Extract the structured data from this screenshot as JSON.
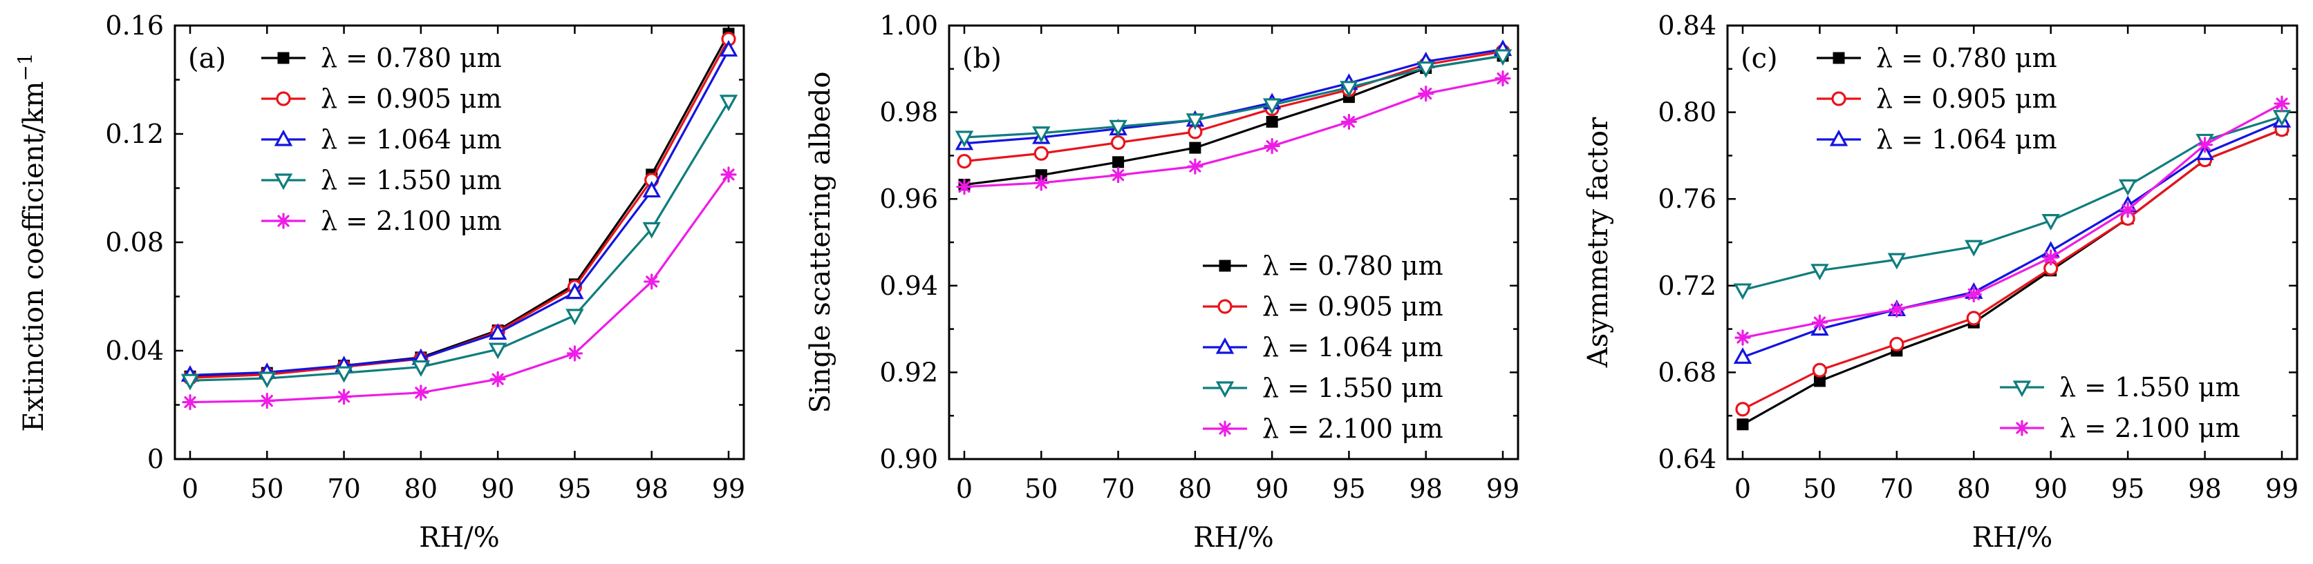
{
  "chart_data": [
    {
      "type": "line",
      "panel_label": "(a)",
      "categories": [
        "0",
        "50",
        "70",
        "80",
        "90",
        "95",
        "98",
        "99"
      ],
      "xlabel": "RH/%",
      "ylabel": "Extinction coefficient/km",
      "ylabel_sup": "−1",
      "ylim": [
        0,
        0.16
      ],
      "yticks": [
        "0",
        "0.04",
        "0.08",
        "0.12",
        "0.16"
      ],
      "ytick_values": [
        0,
        0.04,
        0.08,
        0.12,
        0.16
      ],
      "legend_position": "top-left",
      "legend_split": "none",
      "series": [
        {
          "name": "λ = 0.780 μm",
          "color": "#000000",
          "marker": "square-filled",
          "values": [
            0.0305,
            0.0318,
            0.0345,
            0.0375,
            0.0475,
            0.0645,
            0.105,
            0.157
          ]
        },
        {
          "name": "λ = 0.905 μm",
          "color": "#e8141b",
          "marker": "circle-open",
          "values": [
            0.03,
            0.0312,
            0.034,
            0.037,
            0.047,
            0.0635,
            0.103,
            0.155
          ]
        },
        {
          "name": "λ = 1.064 μm",
          "color": "#1414e0",
          "marker": "triangle-up-open",
          "values": [
            0.031,
            0.032,
            0.0345,
            0.0372,
            0.0465,
            0.0615,
            0.099,
            0.151
          ]
        },
        {
          "name": "λ = 1.550 μm",
          "color": "#0f7d7d",
          "marker": "triangle-down-open",
          "values": [
            0.029,
            0.0298,
            0.0318,
            0.034,
            0.0405,
            0.053,
            0.085,
            0.132
          ]
        },
        {
          "name": "λ = 2.100 μm",
          "color": "#ee1ce6",
          "marker": "star",
          "values": [
            0.021,
            0.0215,
            0.023,
            0.0245,
            0.0295,
            0.039,
            0.0655,
            0.105
          ]
        }
      ]
    },
    {
      "type": "line",
      "panel_label": "(b)",
      "categories": [
        "0",
        "50",
        "70",
        "80",
        "90",
        "95",
        "98",
        "99"
      ],
      "xlabel": "RH/%",
      "ylabel": "Single scattering albedo",
      "ylabel_sup": "",
      "ylim": [
        0.9,
        1.0
      ],
      "yticks": [
        "0.90",
        "0.92",
        "0.94",
        "0.96",
        "0.98",
        "1.00"
      ],
      "ytick_values": [
        0.9,
        0.92,
        0.94,
        0.96,
        0.98,
        1.0
      ],
      "legend_position": "bottom-right",
      "legend_split": "none",
      "series": [
        {
          "name": "λ = 0.780 μm",
          "color": "#000000",
          "marker": "square-filled",
          "values": [
            0.9633,
            0.9655,
            0.9685,
            0.9718,
            0.9778,
            0.9835,
            0.9902,
            0.993
          ]
        },
        {
          "name": "λ = 0.905 μm",
          "color": "#e8141b",
          "marker": "circle-open",
          "values": [
            0.9687,
            0.9705,
            0.973,
            0.9755,
            0.9808,
            0.9852,
            0.991,
            0.994
          ]
        },
        {
          "name": "λ = 1.064 μm",
          "color": "#1414e0",
          "marker": "triangle-up-open",
          "values": [
            0.9728,
            0.9742,
            0.9762,
            0.9782,
            0.9822,
            0.9867,
            0.9917,
            0.9945
          ]
        },
        {
          "name": "λ = 1.550 μm",
          "color": "#0f7d7d",
          "marker": "triangle-down-open",
          "values": [
            0.9742,
            0.9752,
            0.9767,
            0.9782,
            0.9817,
            0.9857,
            0.9902,
            0.993
          ]
        },
        {
          "name": "λ = 2.100 μm",
          "color": "#ee1ce6",
          "marker": "star",
          "values": [
            0.9628,
            0.9637,
            0.9655,
            0.9675,
            0.9722,
            0.9778,
            0.9843,
            0.9878
          ]
        }
      ]
    },
    {
      "type": "line",
      "panel_label": "(c)",
      "categories": [
        "0",
        "50",
        "70",
        "80",
        "90",
        "95",
        "98",
        "99"
      ],
      "xlabel": "RH/%",
      "ylabel": "Asymmetry factor",
      "ylabel_sup": "",
      "ylim": [
        0.64,
        0.84
      ],
      "yticks": [
        "0.64",
        "0.68",
        "0.72",
        "0.76",
        "0.80",
        "0.84"
      ],
      "ytick_values": [
        0.64,
        0.68,
        0.72,
        0.76,
        0.8,
        0.84
      ],
      "legend_position": "top-left and bottom-right",
      "legend_split": "3+2",
      "series": [
        {
          "name": "λ = 0.780 μm",
          "color": "#000000",
          "marker": "square-filled",
          "values": [
            0.656,
            0.676,
            0.69,
            0.703,
            0.727,
            0.751,
            0.778,
            0.792
          ]
        },
        {
          "name": "λ = 0.905 μm",
          "color": "#e8141b",
          "marker": "circle-open",
          "values": [
            0.663,
            0.681,
            0.693,
            0.705,
            0.728,
            0.751,
            0.778,
            0.792
          ]
        },
        {
          "name": "λ = 1.064 μm",
          "color": "#1414e0",
          "marker": "triangle-up-open",
          "values": [
            0.687,
            0.7,
            0.709,
            0.717,
            0.736,
            0.757,
            0.781,
            0.796
          ]
        },
        {
          "name": "λ = 1.550 μm",
          "color": "#0f7d7d",
          "marker": "triangle-down-open",
          "values": [
            0.718,
            0.727,
            0.732,
            0.738,
            0.75,
            0.766,
            0.787,
            0.798
          ]
        },
        {
          "name": "λ = 2.100 μm",
          "color": "#ee1ce6",
          "marker": "star",
          "values": [
            0.696,
            0.703,
            0.709,
            0.716,
            0.733,
            0.755,
            0.785,
            0.804
          ]
        }
      ]
    }
  ]
}
